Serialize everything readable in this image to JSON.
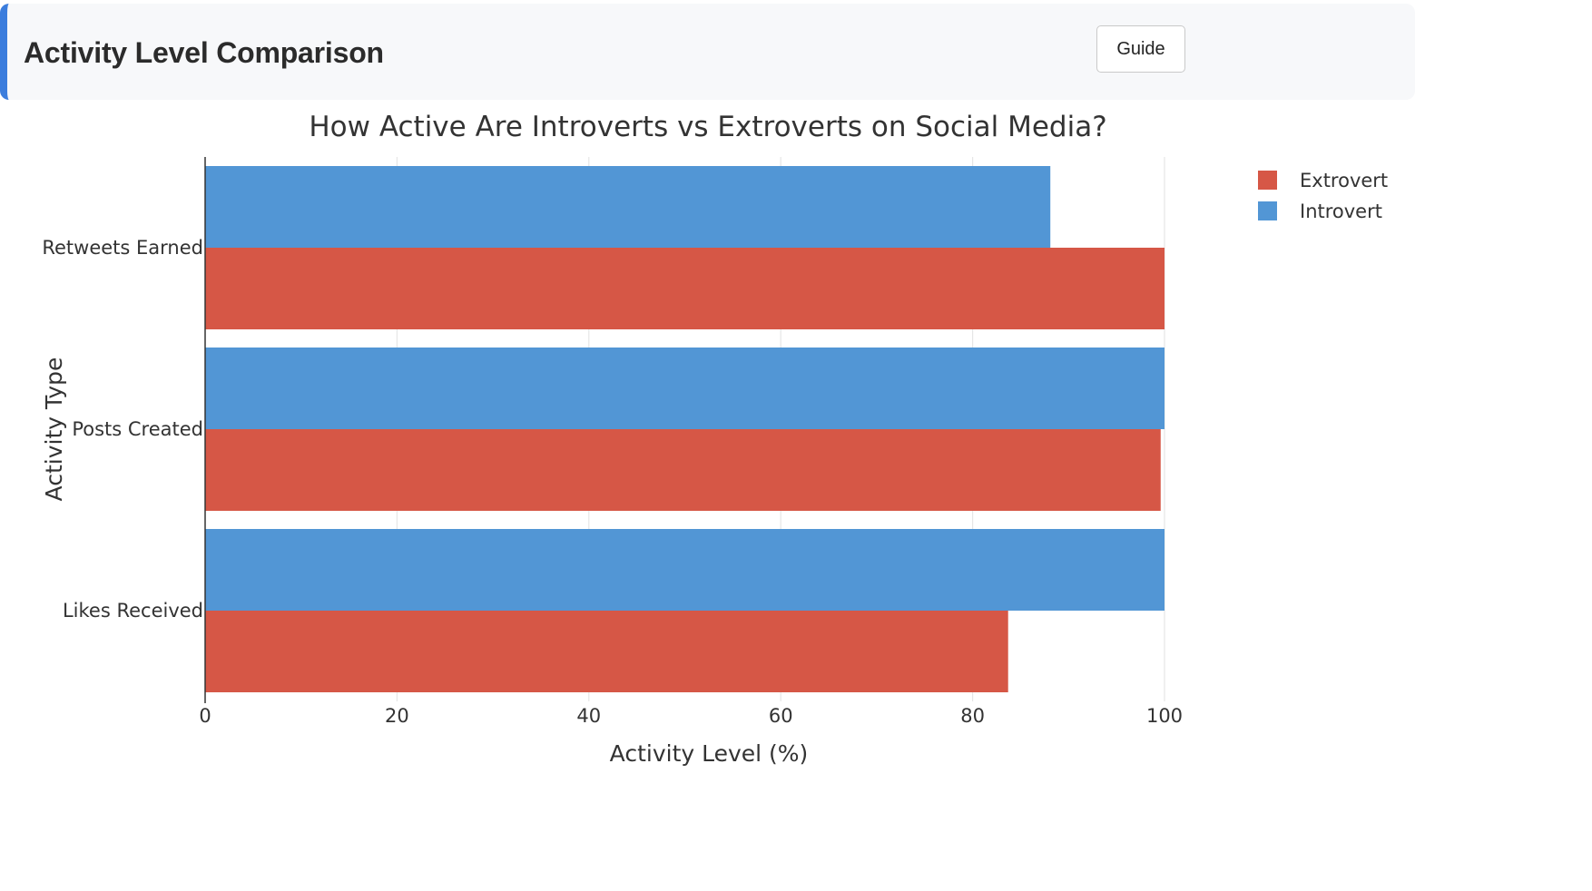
{
  "header": {
    "title": "Activity Level Comparison",
    "guide_label": "Guide"
  },
  "chart_data": {
    "type": "bar",
    "orientation": "horizontal",
    "title": "How Active Are Introverts vs Extroverts on Social Media?",
    "xlabel": "Activity Level (%)",
    "ylabel": "Activity Type",
    "xlim": [
      0,
      100
    ],
    "x_ticks": [
      0,
      20,
      40,
      60,
      80,
      100
    ],
    "categories": [
      "Likes Received",
      "Posts Created",
      "Retweets Earned"
    ],
    "series": [
      {
        "name": "Extrovert",
        "color": "#d65746",
        "values": [
          83.7,
          99.6,
          100
        ]
      },
      {
        "name": "Introvert",
        "color": "#5296d5",
        "values": [
          100,
          100,
          88.1
        ]
      }
    ],
    "legend_position": "top-right",
    "grid": true
  }
}
